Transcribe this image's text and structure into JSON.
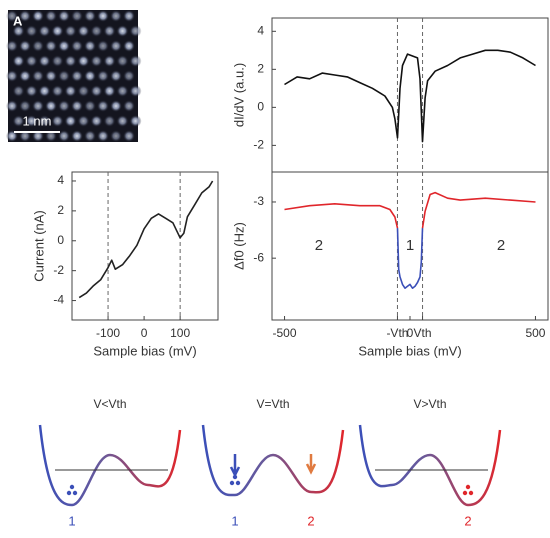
{
  "image": {
    "label": "A",
    "scale_bar": "1 nm"
  },
  "chart_data": [
    {
      "type": "line",
      "xlabel": "Sample bias (mV)",
      "ylabel": "Current (nA)",
      "x": [
        -180,
        -160,
        -140,
        -120,
        -100,
        -90,
        -80,
        -60,
        -40,
        -20,
        0,
        20,
        40,
        60,
        80,
        100,
        110,
        120,
        140,
        160,
        180,
        190
      ],
      "series": [
        {
          "color": "#222222",
          "values": [
            -3.8,
            -3.5,
            -3.0,
            -2.6,
            -1.8,
            -1.3,
            -1.9,
            -1.6,
            -1.0,
            -0.3,
            0.8,
            1.5,
            1.8,
            1.5,
            1.2,
            0.2,
            0.5,
            1.6,
            2.4,
            3.2,
            3.6,
            4.0
          ]
        }
      ],
      "xlim": [
        -200,
        205
      ],
      "xticks": [
        -100,
        0,
        100
      ],
      "ylim": [
        -5.3,
        4.6
      ],
      "yticks": [
        -4,
        -2,
        0,
        2,
        4
      ],
      "vlines": [
        -100,
        100
      ]
    },
    {
      "type": "line",
      "ylabel": "dI/dV (a.u.)",
      "x": [
        -500,
        -450,
        -400,
        -350,
        -300,
        -250,
        -200,
        -150,
        -100,
        -70,
        -60,
        -50,
        -40,
        -30,
        -10,
        10,
        30,
        40,
        50,
        60,
        70,
        100,
        150,
        200,
        250,
        300,
        350,
        400,
        450,
        500
      ],
      "series": [
        {
          "color": "#111111",
          "values": [
            1.2,
            1.6,
            1.5,
            1.8,
            1.7,
            1.6,
            1.3,
            1.0,
            0.6,
            0.0,
            -0.6,
            -1.6,
            1.0,
            2.2,
            2.8,
            2.7,
            2.6,
            1.5,
            -1.8,
            0.5,
            1.4,
            1.9,
            2.2,
            2.6,
            2.8,
            3.0,
            3.0,
            2.9,
            2.6,
            2.2
          ]
        }
      ],
      "xlim": [
        -550,
        550
      ],
      "ylim": [
        -3.4,
        4.7
      ],
      "yticks": [
        -2,
        0,
        2,
        4
      ],
      "vlines": [
        -50,
        50
      ]
    },
    {
      "type": "line",
      "xlabel": "Sample bias (mV)",
      "ylabel": "Δf0 (Hz)",
      "x": [
        -500,
        -400,
        -300,
        -200,
        -120,
        -80,
        -60,
        -50,
        -45,
        -40,
        -30,
        -20,
        -10,
        0,
        10,
        20,
        30,
        40,
        45,
        50,
        60,
        80,
        100,
        150,
        200,
        300,
        400,
        500
      ],
      "series": [
        {
          "color": "#e0262b",
          "values": [
            -3.4,
            -3.2,
            -3.1,
            -3.2,
            -3.2,
            -3.4,
            -3.8,
            -4.4,
            null,
            null,
            null,
            null,
            null,
            null,
            null,
            null,
            null,
            null,
            null,
            -4.4,
            -3.5,
            -2.6,
            -2.5,
            -2.8,
            -2.9,
            -2.8,
            -2.9,
            -3.0
          ]
        },
        {
          "color": "#3b4fb8",
          "values": [
            null,
            null,
            null,
            null,
            null,
            null,
            null,
            -4.4,
            -6.6,
            -7.0,
            -7.4,
            -7.6,
            -7.5,
            -7.4,
            -7.6,
            -7.5,
            -7.3,
            -7.0,
            -6.2,
            -4.4,
            null,
            null,
            null,
            null,
            null,
            null,
            null,
            null
          ]
        }
      ],
      "xlim": [
        -550,
        550
      ],
      "xticks": [
        -500,
        {
          "value": -50,
          "label": "-Vth"
        },
        0,
        {
          "value": 50,
          "label": "Vth"
        },
        500
      ],
      "ylim": [
        -9.3,
        -1.4
      ],
      "yticks": [
        -3,
        -6
      ],
      "vlines": [
        -50,
        50
      ],
      "annotations": [
        "2",
        "1",
        "2"
      ]
    }
  ],
  "schematic": {
    "panels": [
      {
        "title": "V<Vth",
        "labels": [
          "1"
        ]
      },
      {
        "title": "V=Vth",
        "labels": [
          "1",
          "2"
        ]
      },
      {
        "title": "V>Vth",
        "labels": [
          "2"
        ]
      }
    ]
  }
}
